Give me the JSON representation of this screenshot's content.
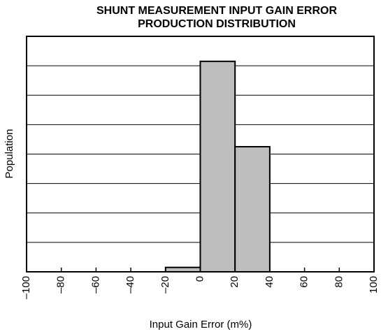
{
  "chart_data": {
    "type": "histogram",
    "title": [
      "SHUNT MEASUREMENT INPUT GAIN ERROR",
      "PRODUCTION DISTRIBUTION"
    ],
    "xlabel": "Input Gain Error (m%)",
    "ylabel": "Population",
    "bins": [
      -20,
      0,
      20,
      40
    ],
    "values": [
      0.15,
      7.15,
      4.25
    ],
    "color": "#bebebe",
    "xlim": [
      -100,
      100
    ],
    "xticks": [
      {
        "value": -100,
        "label": "–100"
      },
      {
        "value": -80,
        "label": "–80"
      },
      {
        "value": -60,
        "label": "–60"
      },
      {
        "value": -40,
        "label": "–40"
      },
      {
        "value": -20,
        "label": "–20"
      },
      0,
      20,
      40,
      60,
      80,
      100
    ],
    "ylim": [
      0,
      8
    ],
    "yticks": [
      0,
      1,
      2,
      3,
      4,
      5,
      6,
      7,
      8
    ],
    "ytick_labels": false,
    "grid": true
  }
}
